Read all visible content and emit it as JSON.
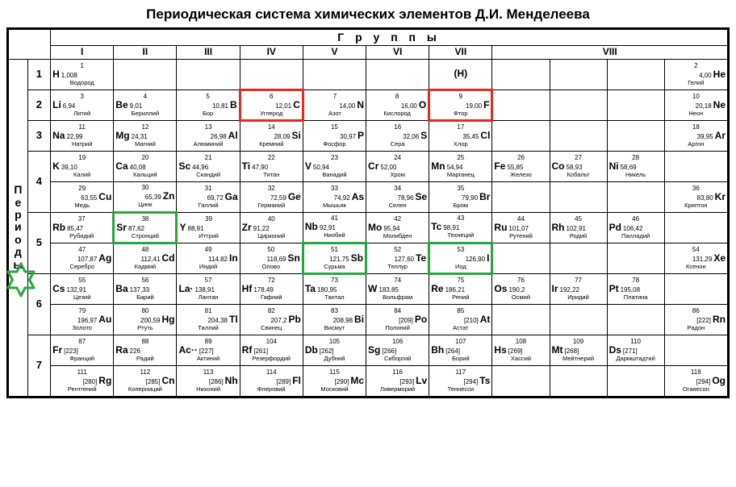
{
  "title": "Периодическая система химических элементов Д.И. Менделеева",
  "groups_label": "Г р у п п ы",
  "group_nums": [
    "I",
    "II",
    "III",
    "IV",
    "V",
    "VI",
    "VII",
    "VIII"
  ],
  "periods_label": [
    "П",
    "е",
    "р",
    "и",
    "о",
    "д",
    "ы"
  ],
  "period_nums": [
    "1",
    "2",
    "3",
    "4",
    "5",
    "6",
    "7"
  ],
  "h_placeholder": "(H)",
  "colors": {
    "red": "#e52b22",
    "green": "#2aa63f",
    "black": "#000000"
  },
  "highlights": {
    "red_cells": [
      "C",
      "F"
    ],
    "green_cells": [
      "Sr",
      "Sb",
      "I"
    ],
    "star_period": 5
  },
  "font_sizes": {
    "title": 17,
    "symbol": 12,
    "mass": 8,
    "name": 7.5,
    "atomic": 8
  },
  "rows": [
    [
      {
        "n": "1",
        "s": "H",
        "m": "1,008",
        "nm": "Водород",
        "a": "l"
      },
      null,
      null,
      null,
      null,
      null,
      {
        "placeholder": true
      },
      null,
      null,
      null,
      {
        "n": "2",
        "s": "He",
        "m": "4,00",
        "nm": "Гелий",
        "a": "r"
      }
    ],
    [
      {
        "n": "3",
        "s": "Li",
        "m": "6,94",
        "nm": "Литий",
        "a": "l"
      },
      {
        "n": "4",
        "s": "Be",
        "m": "9,01",
        "nm": "Бериллий",
        "a": "l"
      },
      {
        "n": "5",
        "s": "B",
        "m": "10,81",
        "nm": "Бор",
        "a": "r"
      },
      {
        "n": "6",
        "s": "C",
        "m": "12,01",
        "nm": "Углерод",
        "a": "r",
        "hl": "red"
      },
      {
        "n": "7",
        "s": "N",
        "m": "14,00",
        "nm": "Азот",
        "a": "r"
      },
      {
        "n": "8",
        "s": "O",
        "m": "16,00",
        "nm": "Кислород",
        "a": "r"
      },
      {
        "n": "9",
        "s": "F",
        "m": "19,00",
        "nm": "Фтор",
        "a": "r",
        "hl": "red"
      },
      null,
      null,
      null,
      {
        "n": "10",
        "s": "Ne",
        "m": "20,18",
        "nm": "Неон",
        "a": "r"
      }
    ],
    [
      {
        "n": "11",
        "s": "Na",
        "m": "22,99",
        "nm": "Натрий",
        "a": "l"
      },
      {
        "n": "12",
        "s": "Mg",
        "m": "24,31",
        "nm": "Магний",
        "a": "l"
      },
      {
        "n": "13",
        "s": "Al",
        "m": "26,98",
        "nm": "Алюминий",
        "a": "r"
      },
      {
        "n": "14",
        "s": "Si",
        "m": "28,09",
        "nm": "Кремний",
        "a": "r"
      },
      {
        "n": "15",
        "s": "P",
        "m": "30,97",
        "nm": "Фосфор",
        "a": "r"
      },
      {
        "n": "16",
        "s": "S",
        "m": "32,06",
        "nm": "Сера",
        "a": "r"
      },
      {
        "n": "17",
        "s": "Cl",
        "m": "35,45",
        "nm": "Хлор",
        "a": "r"
      },
      null,
      null,
      null,
      {
        "n": "18",
        "s": "Ar",
        "m": "39,95",
        "nm": "Аргон",
        "a": "r"
      }
    ],
    [
      {
        "n": "19",
        "s": "K",
        "m": "39,10",
        "nm": "Калий",
        "a": "l"
      },
      {
        "n": "20",
        "s": "Ca",
        "m": "40,08",
        "nm": "Кальций",
        "a": "l"
      },
      {
        "n": "21",
        "s": "Sc",
        "m": "44,96",
        "nm": "Скандий",
        "a": "l"
      },
      {
        "n": "22",
        "s": "Ti",
        "m": "47,90",
        "nm": "Титан",
        "a": "l"
      },
      {
        "n": "23",
        "s": "V",
        "m": "50,94",
        "nm": "Ванадий",
        "a": "l"
      },
      {
        "n": "24",
        "s": "Cr",
        "m": "52,00",
        "nm": "Хром",
        "a": "l"
      },
      {
        "n": "25",
        "s": "Mn",
        "m": "54,94",
        "nm": "Марганец",
        "a": "l"
      },
      {
        "n": "26",
        "s": "Fe",
        "m": "55,85",
        "nm": "Железо",
        "a": "l"
      },
      {
        "n": "27",
        "s": "Co",
        "m": "58,93",
        "nm": "Кобальт",
        "a": "l"
      },
      {
        "n": "28",
        "s": "Ni",
        "m": "58,69",
        "nm": "Никель",
        "a": "l"
      },
      null
    ],
    [
      {
        "n": "29",
        "s": "Cu",
        "m": "63,55",
        "nm": "Медь",
        "a": "r"
      },
      {
        "n": "30",
        "s": "Zn",
        "m": "65,39",
        "nm": "Цинк",
        "a": "r"
      },
      {
        "n": "31",
        "s": "Ga",
        "m": "69,72",
        "nm": "Галлий",
        "a": "r"
      },
      {
        "n": "32",
        "s": "Ge",
        "m": "72,59",
        "nm": "Германий",
        "a": "r"
      },
      {
        "n": "33",
        "s": "As",
        "m": "74,92",
        "nm": "Мышьяк",
        "a": "r"
      },
      {
        "n": "34",
        "s": "Se",
        "m": "78,96",
        "nm": "Селен",
        "a": "r"
      },
      {
        "n": "35",
        "s": "Br",
        "m": "79,90",
        "nm": "Бром",
        "a": "r"
      },
      null,
      null,
      null,
      {
        "n": "36",
        "s": "Kr",
        "m": "83,80",
        "nm": "Криптон",
        "a": "r"
      }
    ],
    [
      {
        "n": "37",
        "s": "Rb",
        "m": "85,47",
        "nm": "Рубидий",
        "a": "l"
      },
      {
        "n": "38",
        "s": "Sr",
        "m": "87,62",
        "nm": "Стронций",
        "a": "l",
        "hl": "green"
      },
      {
        "n": "39",
        "s": "Y",
        "m": "88,91",
        "nm": "Иттрий",
        "a": "l"
      },
      {
        "n": "40",
        "s": "Zr",
        "m": "91,22",
        "nm": "Цирконий",
        "a": "l"
      },
      {
        "n": "41",
        "s": "Nb",
        "m": "92,91",
        "nm": "Ниобий",
        "a": "l"
      },
      {
        "n": "42",
        "s": "Mo",
        "m": "95,94",
        "nm": "Молибден",
        "a": "l"
      },
      {
        "n": "43",
        "s": "Tc",
        "m": "98,91",
        "nm": "Технеций",
        "a": "l"
      },
      {
        "n": "44",
        "s": "Ru",
        "m": "101,07",
        "nm": "Рутений",
        "a": "l"
      },
      {
        "n": "45",
        "s": "Rh",
        "m": "102,91",
        "nm": "Родий",
        "a": "l"
      },
      {
        "n": "46",
        "s": "Pd",
        "m": "106,42",
        "nm": "Палладий",
        "a": "l"
      },
      null
    ],
    [
      {
        "n": "47",
        "s": "Ag",
        "m": "107,87",
        "nm": "Серебро",
        "a": "r"
      },
      {
        "n": "48",
        "s": "Cd",
        "m": "112,41",
        "nm": "Кадмий",
        "a": "r"
      },
      {
        "n": "49",
        "s": "In",
        "m": "114,82",
        "nm": "Индий",
        "a": "r"
      },
      {
        "n": "50",
        "s": "Sn",
        "m": "118,69",
        "nm": "Олово",
        "a": "r"
      },
      {
        "n": "51",
        "s": "Sb",
        "m": "121,75",
        "nm": "Сурьма",
        "a": "r",
        "hl": "green"
      },
      {
        "n": "52",
        "s": "Te",
        "m": "127,60",
        "nm": "Теллур",
        "a": "r"
      },
      {
        "n": "53",
        "s": "I",
        "m": "126,90",
        "nm": "Иод",
        "a": "r",
        "hl": "green"
      },
      null,
      null,
      null,
      {
        "n": "54",
        "s": "Xe",
        "m": "131,29",
        "nm": "Ксенон",
        "a": "r"
      }
    ],
    [
      {
        "n": "55",
        "s": "Cs",
        "m": "132,91",
        "nm": "Цезий",
        "a": "l"
      },
      {
        "n": "56",
        "s": "Ba",
        "m": "137,33",
        "nm": "Барий",
        "a": "l"
      },
      {
        "n": "57",
        "s": "La·",
        "m": "138,91",
        "nm": "Лантан",
        "a": "l"
      },
      {
        "n": "72",
        "s": "Hf",
        "m": "178,49",
        "nm": "Гафний",
        "a": "l"
      },
      {
        "n": "73",
        "s": "Ta",
        "m": "180,95",
        "nm": "Тантал",
        "a": "l"
      },
      {
        "n": "74",
        "s": "W",
        "m": "183,85",
        "nm": "Вольфрам",
        "a": "l"
      },
      {
        "n": "75",
        "s": "Re",
        "m": "186,21",
        "nm": "Рений",
        "a": "l"
      },
      {
        "n": "76",
        "s": "Os",
        "m": "190,2",
        "nm": "Осмий",
        "a": "l"
      },
      {
        "n": "77",
        "s": "Ir",
        "m": "192,22",
        "nm": "Иридий",
        "a": "l"
      },
      {
        "n": "78",
        "s": "Pt",
        "m": "195,08",
        "nm": "Платина",
        "a": "l"
      },
      null
    ],
    [
      {
        "n": "79",
        "s": "Au",
        "m": "196,97",
        "nm": "Золото",
        "a": "r"
      },
      {
        "n": "80",
        "s": "Hg",
        "m": "200,59",
        "nm": "Ртуть",
        "a": "r"
      },
      {
        "n": "81",
        "s": "Tl",
        "m": "204,38",
        "nm": "Таллий",
        "a": "r"
      },
      {
        "n": "82",
        "s": "Pb",
        "m": "207,2",
        "nm": "Свинец",
        "a": "r"
      },
      {
        "n": "83",
        "s": "Bi",
        "m": "208,98",
        "nm": "Висмут",
        "a": "r"
      },
      {
        "n": "84",
        "s": "Po",
        "m": "[209]",
        "nm": "Полоний",
        "a": "r"
      },
      {
        "n": "85",
        "s": "At",
        "m": "[210]",
        "nm": "Астат",
        "a": "r"
      },
      null,
      null,
      null,
      {
        "n": "86",
        "s": "Rn",
        "m": "[222]",
        "nm": "Радон",
        "a": "r"
      }
    ],
    [
      {
        "n": "87",
        "s": "Fr",
        "m": "[223]",
        "nm": "Франций",
        "a": "l"
      },
      {
        "n": "88",
        "s": "Ra",
        "m": "226",
        "nm": "Радий",
        "a": "l"
      },
      {
        "n": "89",
        "s": "Ac··",
        "m": "[227]",
        "nm": "Актиний",
        "a": "l"
      },
      {
        "n": "104",
        "s": "Rf",
        "m": "[261]",
        "nm": "Резерфордий",
        "a": "l"
      },
      {
        "n": "105",
        "s": "Db",
        "m": "[262]",
        "nm": "Дубний",
        "a": "l"
      },
      {
        "n": "106",
        "s": "Sg",
        "m": "[266]",
        "nm": "Сиборгий",
        "a": "l"
      },
      {
        "n": "107",
        "s": "Bh",
        "m": "[264]",
        "nm": "Борий",
        "a": "l"
      },
      {
        "n": "108",
        "s": "Hs",
        "m": "[269]",
        "nm": "Хассий",
        "a": "l"
      },
      {
        "n": "109",
        "s": "Mt",
        "m": "[268]",
        "nm": "Мейтнерий",
        "a": "l"
      },
      {
        "n": "110",
        "s": "Ds",
        "m": "[271]",
        "nm": "Дармштадтий",
        "a": "l"
      },
      null
    ],
    [
      {
        "n": "111",
        "s": "Rg",
        "m": "[280]",
        "nm": "Рентгений",
        "a": "r"
      },
      {
        "n": "112",
        "s": "Cn",
        "m": "[285]",
        "nm": "Коперниций",
        "a": "r"
      },
      {
        "n": "113",
        "s": "Nh",
        "m": "[286]",
        "nm": "Нихоний",
        "a": "r"
      },
      {
        "n": "114",
        "s": "Fl",
        "m": "[289]",
        "nm": "Флеровий",
        "a": "r"
      },
      {
        "n": "115",
        "s": "Mc",
        "m": "[290]",
        "nm": "Московий",
        "a": "r"
      },
      {
        "n": "116",
        "s": "Lv",
        "m": "[293]",
        "nm": "Ливерморий",
        "a": "r"
      },
      {
        "n": "117",
        "s": "Ts",
        "m": "[294]",
        "nm": "Теннесси",
        "a": "r"
      },
      null,
      null,
      null,
      {
        "n": "118",
        "s": "Og",
        "m": "[294]",
        "nm": "Оганесон",
        "a": "r"
      }
    ]
  ],
  "period_row_map": [
    [
      0
    ],
    [
      1
    ],
    [
      2
    ],
    [
      3,
      4
    ],
    [
      5,
      6
    ],
    [
      7,
      8
    ],
    [
      9,
      10
    ]
  ]
}
